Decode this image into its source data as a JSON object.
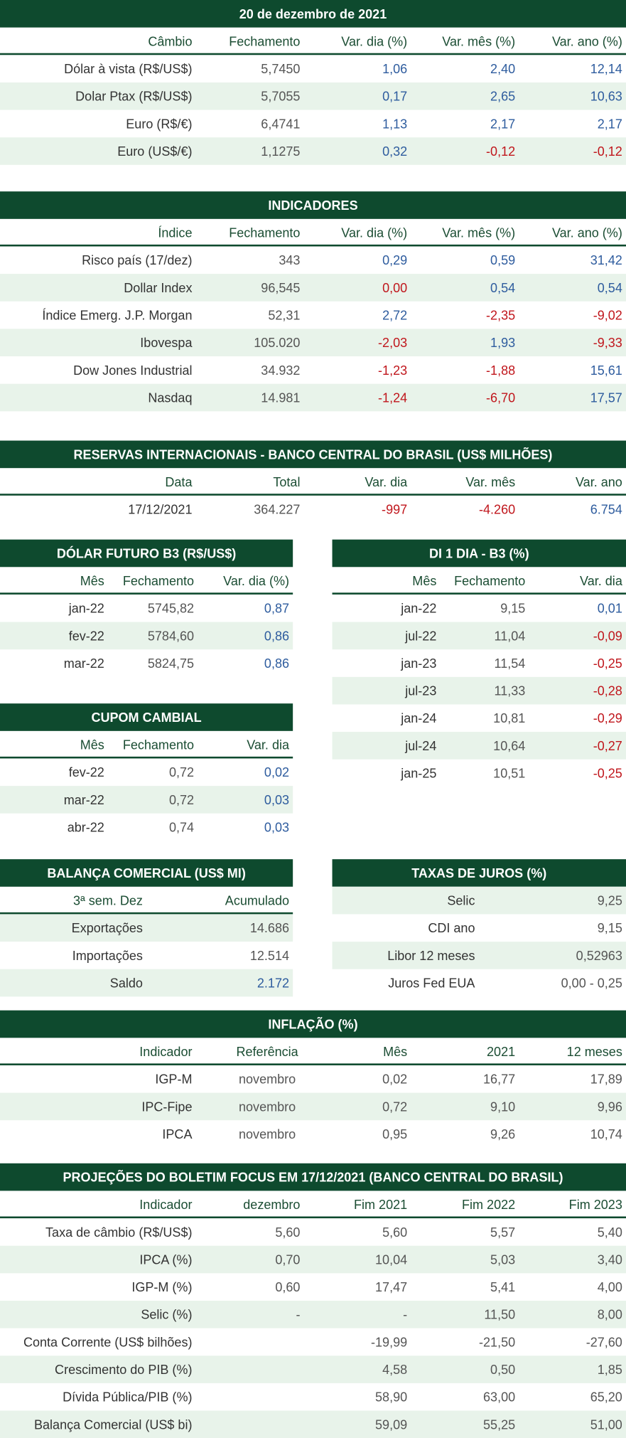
{
  "positive_color": "#2e5c9e",
  "negative_color": "#c0161c",
  "tables": [
    {
      "title": "20 de dezembro de 2021",
      "header": [
        "Câmbio",
        "Fechamento",
        "Var. dia (%)",
        "Var. mês (%)",
        "Var. ano (%)"
      ],
      "rows": [
        [
          "Dólar à vista (R$/US$)",
          "5,7450",
          "1,06",
          "2,40",
          "12,14"
        ],
        [
          "Dolar Ptax (R$/US$)",
          "5,7055",
          "0,17",
          "2,65",
          "10,63"
        ],
        [
          "Euro (R$/€)",
          "6,4741",
          "1,13",
          "2,17",
          "2,17"
        ],
        [
          "Euro (US$/€)",
          "1,1275",
          "0,32",
          "-0,12",
          "-0,12"
        ]
      ],
      "colored_columns": [
        2,
        3,
        4
      ]
    },
    {
      "title": "INDICADORES",
      "header": [
        "Índice",
        "Fechamento",
        "Var. dia (%)",
        "Var. mês (%)",
        "Var. ano (%)"
      ],
      "rows": [
        [
          "Risco país (17/dez)",
          "343",
          "0,29",
          "0,59",
          "31,42"
        ],
        [
          "Dollar Index",
          "96,545",
          "0,00",
          "0,54",
          "0,54"
        ],
        [
          "Índice Emerg. J.P. Morgan",
          "52,31",
          "2,72",
          "-2,35",
          "-9,02"
        ],
        [
          "Ibovespa",
          "105.020",
          "-2,03",
          "1,93",
          "-9,33"
        ],
        [
          "Dow Jones Industrial",
          "34.932",
          "-1,23",
          "-1,88",
          "15,61"
        ],
        [
          "Nasdaq",
          "14.981",
          "-1,24",
          "-6,70",
          "17,57"
        ]
      ],
      "colored_columns": [
        2,
        3,
        4
      ]
    },
    {
      "title": "RESERVAS INTERNACIONAIS - BANCO CENTRAL DO BRASIL (US$ MILHÕES)",
      "header": [
        "Data",
        "Total",
        "Var. dia",
        "Var. mês",
        "Var. ano"
      ],
      "rows": [
        [
          "17/12/2021",
          "364.227",
          "-997",
          "-4.260",
          "6.754"
        ]
      ],
      "colored_columns": [
        2,
        3,
        4
      ]
    },
    {
      "title": "DÓLAR FUTURO B3 (R$/US$)",
      "header": [
        "Mês",
        "Fechamento",
        "Var. dia (%)"
      ],
      "rows": [
        [
          "jan-22",
          "5745,82",
          "0,87"
        ],
        [
          "fev-22",
          "5784,60",
          "0,86"
        ],
        [
          "mar-22",
          "5824,75",
          "0,86"
        ]
      ],
      "colored_columns": [
        2
      ]
    },
    {
      "title": "DI 1 DIA - B3 (%)",
      "header": [
        "Mês",
        "Fechamento",
        "Var. dia"
      ],
      "rows": [
        [
          "jan-22",
          "9,15",
          "0,01"
        ],
        [
          "jul-22",
          "11,04",
          "-0,09"
        ],
        [
          "jan-23",
          "11,54",
          "-0,25"
        ],
        [
          "jul-23",
          "11,33",
          "-0,28"
        ],
        [
          "jan-24",
          "10,81",
          "-0,29"
        ],
        [
          "jul-24",
          "10,64",
          "-0,27"
        ],
        [
          "jan-25",
          "10,51",
          "-0,25"
        ]
      ],
      "colored_columns": [
        2
      ]
    },
    {
      "title": "CUPOM CAMBIAL",
      "header": [
        "Mês",
        "Fechamento",
        "Var. dia"
      ],
      "rows": [
        [
          "fev-22",
          "0,72",
          "0,02"
        ],
        [
          "mar-22",
          "0,72",
          "0,03"
        ],
        [
          "abr-22",
          "0,74",
          "0,03"
        ]
      ],
      "colored_columns": [
        2
      ]
    },
    {
      "title": "BALANÇA COMERCIAL (US$ MI)",
      "header": [
        "3ª sem. Dez",
        "Acumulado"
      ],
      "rows": [
        [
          "Exportações",
          "14.686"
        ],
        [
          "Importações",
          "12.514"
        ],
        [
          "Saldo",
          "2.172"
        ]
      ],
      "colored_cells": [
        [
          2,
          1
        ]
      ]
    },
    {
      "title": "TAXAS DE JUROS (%)",
      "rows": [
        [
          "Selic",
          "9,25"
        ],
        [
          "CDI ano",
          "9,15"
        ],
        [
          "Libor 12 meses",
          "0,52963"
        ],
        [
          "Juros Fed EUA",
          "0,00 - 0,25"
        ]
      ]
    },
    {
      "title": "INFLAÇÃO (%)",
      "header": [
        "Indicador",
        "Referência",
        "Mês",
        "2021",
        "12 meses"
      ],
      "rows": [
        [
          "IGP-M",
          "novembro",
          "0,02",
          "16,77",
          "17,89"
        ],
        [
          "IPC-Fipe",
          "novembro",
          "0,72",
          "9,10",
          "9,96"
        ],
        [
          "IPCA",
          "novembro",
          "0,95",
          "9,26",
          "10,74"
        ]
      ]
    },
    {
      "title": "PROJEÇÕES DO BOLETIM FOCUS EM 17/12/2021 (BANCO CENTRAL DO BRASIL)",
      "header": [
        "Indicador",
        "dezembro",
        "Fim 2021",
        "Fim 2022",
        "Fim 2023"
      ],
      "rows": [
        [
          "Taxa de câmbio (R$/US$)",
          "5,60",
          "5,60",
          "5,57",
          "5,40"
        ],
        [
          "IPCA (%)",
          "0,70",
          "10,04",
          "5,03",
          "3,40"
        ],
        [
          "IGP-M (%)",
          "0,60",
          "17,47",
          "5,41",
          "4,00"
        ],
        [
          "Selic (%)",
          "-",
          "-",
          "11,50",
          "8,00"
        ],
        [
          "Conta Corrente (US$ bilhões)",
          "",
          "-19,99",
          "-21,50",
          "-27,60"
        ],
        [
          "Crescimento do PIB (%)",
          "",
          "4,58",
          "0,50",
          "1,85"
        ],
        [
          "Dívida Pública/PIB (%)",
          "",
          "58,90",
          "63,00",
          "65,20"
        ],
        [
          "Balança Comercial (US$ bi)",
          "",
          "59,09",
          "55,25",
          "51,00"
        ]
      ]
    }
  ]
}
